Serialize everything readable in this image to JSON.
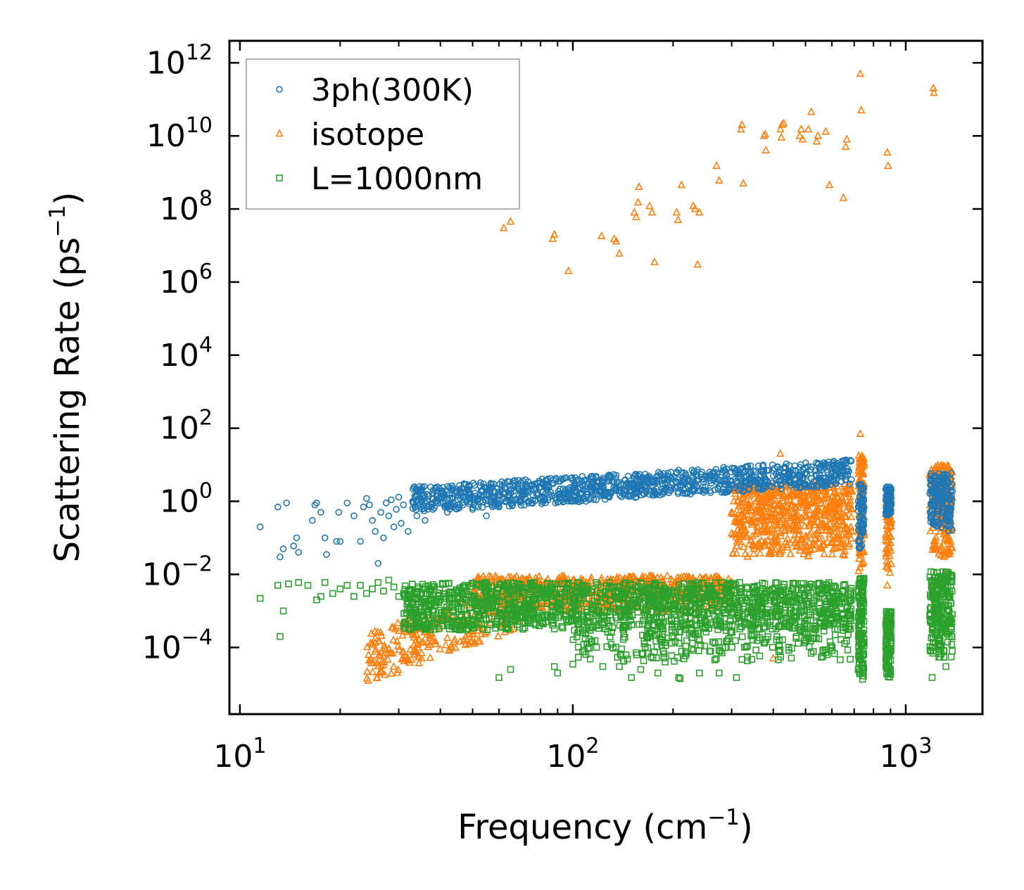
{
  "chart_data": {
    "type": "scatter",
    "title": "",
    "xlabel": "Frequency (cm",
    "xlabel_sup": "−1",
    "xlabel_end": ")",
    "ylabel": "Scattering Rate (ps",
    "ylabel_sup": "−1",
    "ylabel_end": ")",
    "xscale": "log",
    "yscale": "log",
    "xlim": [
      9.3,
      1700
    ],
    "ylim": [
      1.5e-06,
      4000000000000.0
    ],
    "x_ticks": [
      {
        "value": 10,
        "base": "10",
        "exp": "1"
      },
      {
        "value": 100,
        "base": "10",
        "exp": "2"
      },
      {
        "value": 1000,
        "base": "10",
        "exp": "3"
      }
    ],
    "y_ticks": [
      {
        "value": 0.0001,
        "base": "10",
        "exp": "−4"
      },
      {
        "value": 0.01,
        "base": "10",
        "exp": "−2"
      },
      {
        "value": 1,
        "base": "10",
        "exp": "0"
      },
      {
        "value": 100.0,
        "base": "10",
        "exp": "2"
      },
      {
        "value": 10000.0,
        "base": "10",
        "exp": "4"
      },
      {
        "value": 1000000.0,
        "base": "10",
        "exp": "6"
      },
      {
        "value": 100000000.0,
        "base": "10",
        "exp": "8"
      },
      {
        "value": 10000000000.0,
        "base": "10",
        "exp": "10"
      },
      {
        "value": 1000000000000.0,
        "base": "10",
        "exp": "12"
      }
    ],
    "legend_position": "top-left",
    "series": [
      {
        "name": "3ph(300K)",
        "marker": "circle",
        "color": "#1f77b4",
        "points": [
          [
            11.5,
            0.2
          ],
          [
            13,
            0.7
          ],
          [
            13.2,
            0.03
          ],
          [
            13.5,
            0.05
          ],
          [
            13.8,
            0.9
          ],
          [
            14.5,
            0.06
          ],
          [
            14.8,
            0.1
          ],
          [
            15,
            0.04
          ],
          [
            16.5,
            0.3
          ],
          [
            16.8,
            0.8
          ],
          [
            17,
            0.9
          ],
          [
            17.5,
            0.5
          ],
          [
            18,
            0.1
          ],
          [
            18.2,
            0.035
          ],
          [
            19.5,
            0.08
          ],
          [
            19.8,
            0.5
          ],
          [
            20,
            0.08
          ],
          [
            21,
            0.9
          ],
          [
            22,
            0.4
          ],
          [
            23,
            0.08
          ],
          [
            23.5,
            0.7
          ],
          [
            24,
            1.2
          ],
          [
            24.5,
            0.8
          ],
          [
            25,
            0.3
          ],
          [
            25.5,
            0.15
          ],
          [
            26,
            0.02
          ],
          [
            26.5,
            0.5
          ],
          [
            27,
            0.1
          ],
          [
            27.5,
            0.9
          ],
          [
            28,
            0.4
          ],
          [
            28.5,
            1.1
          ],
          [
            29,
            0.2
          ],
          [
            29.5,
            0.6
          ],
          [
            30,
            1.3
          ],
          [
            30.5,
            0.25
          ],
          [
            31,
            0.8
          ],
          [
            32,
            0.15
          ],
          [
            33,
            1.0
          ],
          [
            34,
            0.4
          ],
          [
            35,
            0.7
          ],
          [
            36,
            0.3
          ],
          [
            38,
            0.6
          ],
          [
            40,
            0.9
          ],
          [
            42,
            0.5
          ],
          [
            45,
            0.8
          ],
          [
            48,
            1.0
          ],
          [
            50,
            0.6
          ],
          [
            52,
            0.7
          ],
          [
            55,
            0.4
          ],
          [
            57,
            0.8
          ],
          [
            60,
            0.7
          ],
          [
            63,
            1.0
          ],
          [
            66,
            0.8
          ],
          [
            70,
            1.1
          ],
          [
            75,
            0.9
          ],
          [
            80,
            1.2
          ],
          [
            85,
            1.3
          ],
          [
            90,
            1.5
          ],
          [
            95,
            2.0
          ],
          [
            100,
            2.2
          ],
          [
            110,
            1.8
          ],
          [
            120,
            1.9
          ],
          [
            130,
            1.6
          ],
          [
            140,
            1.8
          ],
          [
            150,
            2.0
          ],
          [
            160,
            2.1
          ],
          [
            175,
            1.9
          ],
          [
            190,
            2.2
          ],
          [
            210,
            2.4
          ],
          [
            230,
            2.0
          ],
          [
            250,
            2.5
          ],
          [
            275,
            2.6
          ],
          [
            300,
            2.8
          ],
          [
            330,
            3.5
          ],
          [
            360,
            4.0
          ],
          [
            400,
            5.0
          ],
          [
            430,
            6.0
          ],
          [
            460,
            5.0
          ],
          [
            500,
            6.0
          ],
          [
            550,
            5.5
          ],
          [
            600,
            7.0
          ],
          [
            640,
            10.0
          ],
          [
            680,
            3.0
          ],
          [
            720,
            1.0
          ],
          [
            740,
            0.3
          ],
          [
            880,
            2.0
          ],
          [
            900,
            0.8
          ],
          [
            1200,
            1.0
          ],
          [
            1300,
            1.8
          ],
          [
            1350,
            1.2
          ]
        ],
        "band": {
          "x0": 33,
          "x1": 690,
          "lo": 0.5,
          "hi": 2.5,
          "slope": 0.57,
          "n": 1100
        },
        "clusters": [
          {
            "x0": 720,
            "x1": 750,
            "lo": 0.05,
            "hi": 3.0,
            "n": 70
          },
          {
            "x0": 870,
            "x1": 905,
            "lo": 0.4,
            "hi": 2.5,
            "n": 90
          },
          {
            "x0": 1180,
            "x1": 1380,
            "lo": 0.15,
            "hi": 6.0,
            "n": 170
          }
        ]
      },
      {
        "name": "isotope",
        "marker": "triangle",
        "color": "#ff7f0e",
        "points": [
          [
            62,
            30000000.0
          ],
          [
            65,
            45000000.0
          ],
          [
            87,
            15000000.0
          ],
          [
            88,
            20000000.0
          ],
          [
            97,
            2000000.0
          ],
          [
            122,
            18000000.0
          ],
          [
            133,
            15000000.0
          ],
          [
            135,
            13000000.0
          ],
          [
            138,
            6000000.0
          ],
          [
            153,
            80000000.0
          ],
          [
            155,
            60000000.0
          ],
          [
            157,
            150000000.0
          ],
          [
            158,
            400000000.0
          ],
          [
            170,
            120000000.0
          ],
          [
            173,
            80000000.0
          ],
          [
            176,
            3500000.0
          ],
          [
            205,
            80000000.0
          ],
          [
            207,
            50000000.0
          ],
          [
            212,
            450000000.0
          ],
          [
            230,
            120000000.0
          ],
          [
            233,
            100000000.0
          ],
          [
            237,
            3000000.0
          ],
          [
            240,
            80000000.0
          ],
          [
            270,
            1500000000.0
          ],
          [
            275,
            600000000.0
          ],
          [
            320,
            15000000000.0
          ],
          [
            322,
            20000000000.0
          ],
          [
            325,
            500000000.0
          ],
          [
            375,
            10000000000.0
          ],
          [
            378,
            11000000000.0
          ],
          [
            380,
            4000000000.0
          ],
          [
            420,
            15000000000.0
          ],
          [
            423,
            9000000000.0
          ],
          [
            425,
            20000000000.0
          ],
          [
            430,
            22000000000.0
          ],
          [
            480,
            10000000000.0
          ],
          [
            485,
            15000000000.0
          ],
          [
            490,
            8000000000.0
          ],
          [
            510,
            15000000000.0
          ],
          [
            520,
            45000000000.0
          ],
          [
            540,
            7000000000.0
          ],
          [
            545,
            10000000000.0
          ],
          [
            575,
            13000000000.0
          ],
          [
            590,
            450000000.0
          ],
          [
            650,
            200000000.0
          ],
          [
            660,
            5000000000.0
          ],
          [
            665,
            8000000000.0
          ],
          [
            730,
            500000000000.0
          ],
          [
            735,
            50000000000.0
          ],
          [
            880,
            3500000000.0
          ],
          [
            885,
            1500000000.0
          ],
          [
            1210,
            200000000000.0
          ],
          [
            1215,
            150000000000.0
          ],
          [
            300,
            0.5
          ],
          [
            420,
            20
          ],
          [
            730,
            70
          ],
          [
            740,
            0.02
          ],
          [
            880,
            0.005
          ],
          [
            1200,
            0.005
          ],
          [
            1250,
            8
          ],
          [
            1330,
            0.01
          ],
          [
            350,
            0.05
          ],
          [
            500,
            0.4
          ],
          [
            400,
            5e-05
          ]
        ],
        "band": {
          "x0": 24,
          "x1": 70,
          "lo": 1e-05,
          "hi": 0.00025,
          "slope": 3.3,
          "n": 280
        },
        "clusters": [
          {
            "x0": 50,
            "x1": 300,
            "lo": 0.001,
            "hi": 0.009,
            "n": 600
          },
          {
            "x0": 300,
            "x1": 690,
            "lo": 0.03,
            "hi": 3.0,
            "n": 650
          },
          {
            "x0": 720,
            "x1": 750,
            "lo": 0.01,
            "hi": 20,
            "n": 90
          },
          {
            "x0": 870,
            "x1": 905,
            "lo": 0.01,
            "hi": 1.0,
            "n": 60
          },
          {
            "x0": 1180,
            "x1": 1380,
            "lo": 0.03,
            "hi": 10,
            "n": 190
          }
        ]
      },
      {
        "name": "L=1000nm",
        "marker": "square",
        "color": "#2ca02c",
        "points": [
          [
            11.5,
            0.0022
          ],
          [
            13,
            0.005
          ],
          [
            13.2,
            0.0002
          ],
          [
            13.5,
            0.001
          ],
          [
            14,
            0.0055
          ],
          [
            15,
            0.006
          ],
          [
            16,
            0.005
          ],
          [
            17,
            0.002
          ],
          [
            17.5,
            0.0025
          ],
          [
            18,
            0.006
          ],
          [
            19,
            0.003
          ],
          [
            20,
            0.004
          ],
          [
            21,
            0.005
          ],
          [
            22,
            0.0025
          ],
          [
            23,
            0.005
          ],
          [
            24,
            0.003
          ],
          [
            25,
            0.004
          ],
          [
            26,
            0.006
          ],
          [
            27,
            0.0035
          ],
          [
            28,
            0.007
          ],
          [
            29,
            0.0045
          ],
          [
            30,
            0.0025
          ],
          [
            31,
            0.003
          ],
          [
            60,
            1.5e-05
          ],
          [
            65,
            2.5e-05
          ],
          [
            88,
            3e-05
          ],
          [
            90,
            2e-05
          ],
          [
            100,
            3.5e-05
          ],
          [
            123,
            3e-05
          ],
          [
            138,
            3e-05
          ],
          [
            150,
            1.5e-05
          ],
          [
            160,
            2.5e-05
          ],
          [
            180,
            2e-05
          ],
          [
            208,
            1.5e-05
          ],
          [
            210,
            1.4e-05
          ],
          [
            240,
            2e-05
          ],
          [
            275,
            2e-05
          ],
          [
            310,
            1.5e-05
          ],
          [
            1200,
            1.5e-05
          ],
          [
            1320,
            3e-05
          ],
          [
            1320,
            0.008
          ],
          [
            1300,
            0.0003
          ],
          [
            1330,
            0.01
          ]
        ],
        "band": {
          "x0": 31,
          "x1": 690,
          "lo": 0.0003,
          "hi": 0.006,
          "slope": 0,
          "n": 1600
        },
        "clusters": [
          {
            "x0": 100,
            "x1": 690,
            "lo": 4e-05,
            "hi": 0.0003,
            "n": 220
          },
          {
            "x0": 720,
            "x1": 750,
            "lo": 1.2e-05,
            "hi": 0.008,
            "n": 120
          },
          {
            "x0": 870,
            "x1": 905,
            "lo": 1.5e-05,
            "hi": 0.001,
            "n": 110
          },
          {
            "x0": 1180,
            "x1": 1380,
            "lo": 5e-05,
            "hi": 0.012,
            "n": 220
          }
        ]
      }
    ]
  }
}
